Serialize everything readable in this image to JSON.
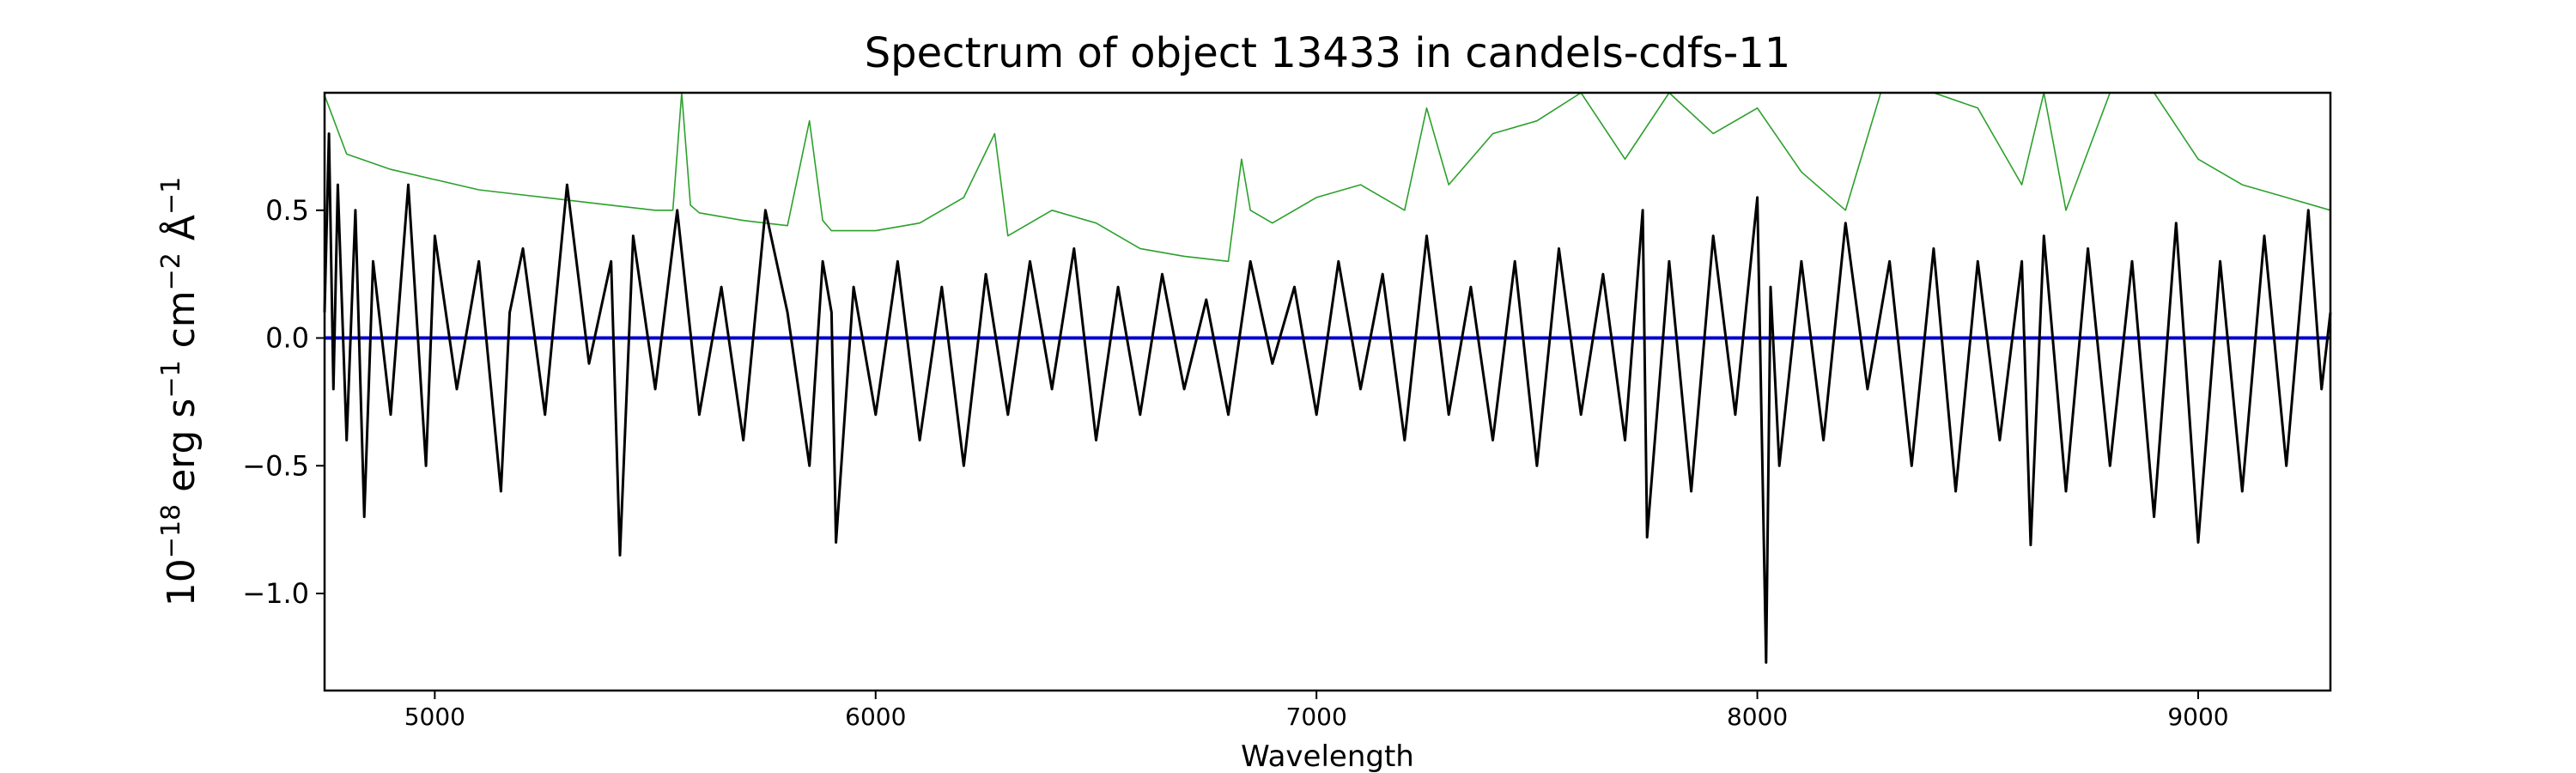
{
  "chart_data": {
    "type": "line",
    "title": "Spectrum of object 13433 in candels-cdfs-11",
    "xlabel": "Wavelength",
    "ylabel": {
      "prefix": "10",
      "exp1": "−18",
      "erg": " erg s",
      "exp2": "−1",
      "cm": " cm",
      "exp3": "−2",
      "ang": " Å",
      "exp4": "−1"
    },
    "xlim": [
      4750,
      9300
    ],
    "ylim": [
      -1.38,
      0.96
    ],
    "x_ticks": [
      5000,
      6000,
      7000,
      8000,
      9000
    ],
    "x_tick_labels": [
      "5000",
      "6000",
      "7000",
      "8000",
      "9000"
    ],
    "y_ticks": [
      0.5,
      0.0,
      -0.5,
      -1.0
    ],
    "y_tick_labels": [
      "0.5",
      "0.0",
      "−0.5",
      "−1.0"
    ],
    "grid": false,
    "series": [
      {
        "role": "error spectrum",
        "color": "#2ca02c",
        "x": [
          4750,
          4800,
          4900,
          5000,
          5100,
          5200,
          5300,
          5400,
          5500,
          5540,
          5560,
          5580,
          5600,
          5700,
          5800,
          5850,
          5880,
          5900,
          6000,
          6100,
          6200,
          6270,
          6300,
          6400,
          6500,
          6600,
          6700,
          6800,
          6830,
          6850,
          6900,
          7000,
          7100,
          7200,
          7250,
          7300,
          7400,
          7500,
          7600,
          7700,
          7800,
          7900,
          8000,
          8100,
          8200,
          8280,
          8300,
          8400,
          8500,
          8600,
          8650,
          8700,
          8800,
          8900,
          9000,
          9100,
          9200,
          9300
        ],
        "values": [
          0.95,
          0.72,
          0.66,
          0.62,
          0.58,
          0.56,
          0.54,
          0.52,
          0.5,
          0.5,
          0.96,
          0.52,
          0.49,
          0.46,
          0.44,
          0.85,
          0.46,
          0.42,
          0.42,
          0.45,
          0.55,
          0.8,
          0.4,
          0.5,
          0.45,
          0.35,
          0.32,
          0.3,
          0.7,
          0.5,
          0.45,
          0.55,
          0.6,
          0.5,
          0.9,
          0.6,
          0.8,
          0.85,
          0.96,
          0.7,
          0.96,
          0.8,
          0.9,
          0.65,
          0.5,
          0.96,
          0.96,
          0.96,
          0.9,
          0.6,
          0.96,
          0.5,
          0.96,
          0.96,
          0.7,
          0.6,
          0.55,
          0.5
        ]
      },
      {
        "role": "model",
        "color": "#0000cc",
        "x": [
          4750,
          9300
        ],
        "values": [
          0.0,
          0.0
        ]
      },
      {
        "role": "flux",
        "color": "#000000",
        "x": [
          4750,
          4760,
          4770,
          4780,
          4800,
          4820,
          4840,
          4860,
          4900,
          4940,
          4980,
          5000,
          5050,
          5100,
          5150,
          5170,
          5200,
          5250,
          5300,
          5350,
          5400,
          5420,
          5450,
          5500,
          5550,
          5600,
          5650,
          5700,
          5750,
          5800,
          5850,
          5880,
          5900,
          5910,
          5950,
          6000,
          6050,
          6100,
          6150,
          6200,
          6250,
          6300,
          6350,
          6400,
          6450,
          6500,
          6550,
          6600,
          6650,
          6700,
          6750,
          6800,
          6850,
          6900,
          6950,
          7000,
          7050,
          7100,
          7150,
          7200,
          7250,
          7300,
          7350,
          7400,
          7450,
          7500,
          7550,
          7600,
          7650,
          7700,
          7740,
          7750,
          7800,
          7850,
          7900,
          7950,
          8000,
          8020,
          8030,
          8050,
          8100,
          8150,
          8200,
          8250,
          8300,
          8350,
          8400,
          8450,
          8500,
          8550,
          8600,
          8620,
          8650,
          8700,
          8750,
          8800,
          8850,
          8900,
          8950,
          9000,
          9050,
          9100,
          9150,
          9200,
          9250,
          9280,
          9300
        ],
        "values": [
          0.1,
          0.8,
          -0.2,
          0.6,
          -0.4,
          0.5,
          -0.7,
          0.3,
          -0.3,
          0.6,
          -0.5,
          0.4,
          -0.2,
          0.3,
          -0.6,
          0.1,
          0.35,
          -0.3,
          0.6,
          -0.1,
          0.3,
          -0.85,
          0.4,
          -0.2,
          0.5,
          -0.3,
          0.2,
          -0.4,
          0.5,
          0.1,
          -0.5,
          0.3,
          0.1,
          -0.8,
          0.2,
          -0.3,
          0.3,
          -0.4,
          0.2,
          -0.5,
          0.25,
          -0.3,
          0.3,
          -0.2,
          0.35,
          -0.4,
          0.2,
          -0.3,
          0.25,
          -0.2,
          0.15,
          -0.3,
          0.3,
          -0.1,
          0.2,
          -0.3,
          0.3,
          -0.2,
          0.25,
          -0.4,
          0.4,
          -0.3,
          0.2,
          -0.4,
          0.3,
          -0.5,
          0.35,
          -0.3,
          0.25,
          -0.4,
          0.5,
          -0.78,
          0.3,
          -0.6,
          0.4,
          -0.3,
          0.55,
          -1.27,
          0.2,
          -0.5,
          0.3,
          -0.4,
          0.45,
          -0.2,
          0.3,
          -0.5,
          0.35,
          -0.6,
          0.3,
          -0.4,
          0.3,
          -0.81,
          0.4,
          -0.6,
          0.35,
          -0.5,
          0.3,
          -0.7,
          0.45,
          -0.8,
          0.3,
          -0.6,
          0.4,
          -0.5,
          0.5,
          -0.2,
          0.1
        ]
      }
    ]
  }
}
